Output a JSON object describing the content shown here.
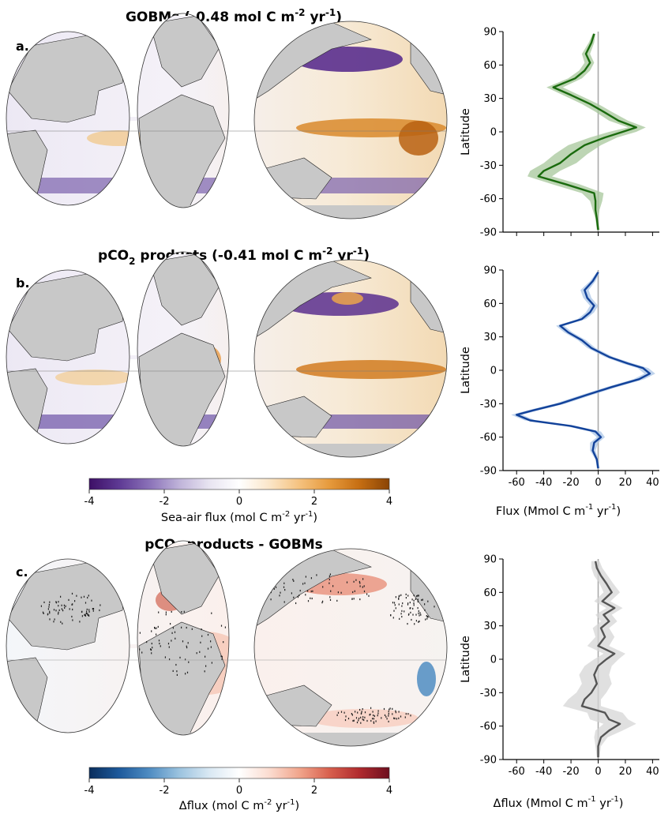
{
  "panels": [
    {
      "letter": "a.",
      "title_main": "GOBMs (-0.48 mol C m",
      "title_sup1": "-2",
      "title_mid": " yr",
      "title_sup2": "-1",
      "title_end": ")"
    },
    {
      "letter": "b.",
      "title_pre": "pCO",
      "title_sub": "2",
      "title_main": " products (-0.41 mol C m",
      "title_sup1": "-2",
      "title_mid": " yr",
      "title_sup2": "-1",
      "title_end": ")"
    },
    {
      "letter": "c.",
      "title_pre": "pCO",
      "title_sub": "2",
      "title_main": " products - GOBMs"
    }
  ],
  "colorbars": [
    {
      "ticks": [
        "-4",
        "-2",
        "0",
        "2",
        "4"
      ],
      "label_main": "Sea-air flux (mol C m",
      "label_sup1": "-2",
      "label_mid": " yr",
      "label_sup2": "-1",
      "label_end": ")",
      "colors": [
        "#3d0f66",
        "#5e3a94",
        "#8a71b8",
        "#bfb3d9",
        "#e8e4f1",
        "#ffffff",
        "#fbe6c9",
        "#f5c27f",
        "#e69a3c",
        "#c66e12",
        "#8a4405"
      ]
    },
    {
      "ticks": [
        "-4",
        "-2",
        "0",
        "2",
        "4"
      ],
      "label_main": "Δflux (mol C m",
      "label_sup1": "-2",
      "label_mid": " yr",
      "label_sup2": "-1",
      "label_end": ")",
      "colors": [
        "#0a2d5c",
        "#1d5a9c",
        "#4f8cc2",
        "#9bc3df",
        "#d9e8f3",
        "#ffffff",
        "#fbdcd0",
        "#f1a58c",
        "#d8604e",
        "#b02a2e",
        "#6d0f1f"
      ]
    }
  ],
  "profile_axis": {
    "ylabel": "Latitude",
    "yticks": [
      "90",
      "60",
      "30",
      "0",
      "-30",
      "-60",
      "-90"
    ],
    "xticks": [
      "-60",
      "-40",
      "-20",
      "0",
      "20",
      "40"
    ],
    "xlabel_main": "Flux (Mmol C m",
    "xlabel_sup1": "-1",
    "xlabel_mid": " yr",
    "xlabel_sup2": "-1",
    "xlabel_end": ")",
    "xlabel_c_main": "Δflux (Mmol C m",
    "xlabel_c_sup1": "-1",
    "xlabel_c_mid": " yr",
    "xlabel_c_sup2": "-1",
    "xlabel_c_end": ")"
  },
  "map_colors": {
    "land": "#c8c8c8",
    "coast": "#222222"
  },
  "chart_data": [
    {
      "type": "line",
      "panel": "a",
      "xlim": [
        -70,
        45
      ],
      "ylim": [
        -90,
        90
      ],
      "color": "#1a6b0e",
      "band_color": "#a7c79b",
      "series": [
        {
          "lat": [
            88,
            80,
            70,
            62,
            55,
            48,
            40,
            33,
            25,
            18,
            10,
            4,
            0,
            -5,
            -12,
            -20,
            -28,
            -35,
            -40,
            -47,
            -55,
            -62,
            -70,
            -78,
            -88
          ],
          "mean": [
            -3,
            -5,
            -9,
            -6,
            -10,
            -17,
            -33,
            -20,
            -6,
            4,
            15,
            28,
            18,
            5,
            -10,
            -20,
            -28,
            -40,
            -44,
            -24,
            -3,
            -2,
            -2,
            -1,
            0
          ],
          "lower": [
            -4,
            -7,
            -12,
            -10,
            -14,
            -22,
            -38,
            -26,
            -12,
            -2,
            8,
            22,
            8,
            -6,
            -22,
            -32,
            -40,
            -50,
            -52,
            -34,
            -12,
            -6,
            -4,
            -2,
            -1
          ],
          "upper": [
            -2,
            -3,
            -6,
            -3,
            -6,
            -12,
            -26,
            -14,
            0,
            10,
            22,
            35,
            28,
            14,
            2,
            -8,
            -16,
            -28,
            -34,
            -14,
            4,
            3,
            1,
            0,
            1
          ]
        }
      ]
    },
    {
      "type": "line",
      "panel": "b",
      "xlim": [
        -70,
        45
      ],
      "ylim": [
        -90,
        90
      ],
      "color": "#12429a",
      "band_color": "#a9c4e6",
      "series": [
        {
          "lat": [
            88,
            80,
            72,
            65,
            58,
            52,
            46,
            40,
            34,
            27,
            20,
            12,
            6,
            2,
            -3,
            -8,
            -15,
            -22,
            -30,
            -36,
            -40,
            -45,
            -50,
            -55,
            -60,
            -65,
            -72,
            -80,
            -88
          ],
          "mean": [
            0,
            -4,
            -10,
            -8,
            -3,
            -6,
            -12,
            -28,
            -22,
            -12,
            -5,
            8,
            22,
            33,
            38,
            30,
            10,
            -8,
            -28,
            -48,
            -60,
            -50,
            -20,
            -2,
            2,
            -3,
            -4,
            -1,
            0
          ],
          "lower": [
            -1,
            -6,
            -13,
            -11,
            -6,
            -9,
            -15,
            -31,
            -25,
            -15,
            -8,
            5,
            18,
            29,
            34,
            26,
            6,
            -12,
            -32,
            -52,
            -64,
            -54,
            -24,
            -6,
            -1,
            -6,
            -6,
            -2,
            -1
          ],
          "upper": [
            1,
            -2,
            -7,
            -5,
            0,
            -3,
            -9,
            -25,
            -19,
            -9,
            -2,
            11,
            26,
            37,
            42,
            34,
            14,
            -4,
            -24,
            -44,
            -56,
            -46,
            -16,
            2,
            5,
            0,
            -2,
            0,
            1
          ]
        }
      ]
    },
    {
      "type": "line",
      "panel": "c",
      "xlim": [
        -70,
        45
      ],
      "ylim": [
        -90,
        90
      ],
      "color": "#555555",
      "band_color": "#d6d6d6",
      "series": [
        {
          "lat": [
            88,
            82,
            75,
            68,
            60,
            52,
            46,
            40,
            34,
            28,
            20,
            12,
            5,
            0,
            -6,
            -14,
            -22,
            -30,
            -36,
            -42,
            -48,
            -54,
            -58,
            -64,
            -70,
            -78,
            -88
          ],
          "mean": [
            -2,
            -1,
            2,
            6,
            10,
            3,
            12,
            4,
            8,
            2,
            5,
            0,
            12,
            6,
            0,
            -3,
            -1,
            -5,
            -10,
            -12,
            5,
            8,
            16,
            8,
            2,
            0,
            0
          ],
          "lower": [
            -5,
            -5,
            -3,
            1,
            4,
            -3,
            6,
            -2,
            2,
            -4,
            -2,
            -8,
            4,
            -3,
            -10,
            -14,
            -12,
            -16,
            -22,
            -26,
            -8,
            -6,
            4,
            -2,
            -3,
            -2,
            -1
          ],
          "upper": [
            1,
            3,
            7,
            11,
            16,
            9,
            18,
            10,
            14,
            8,
            12,
            8,
            20,
            15,
            10,
            8,
            10,
            6,
            2,
            2,
            18,
            22,
            28,
            18,
            7,
            2,
            1
          ]
        }
      ]
    }
  ]
}
